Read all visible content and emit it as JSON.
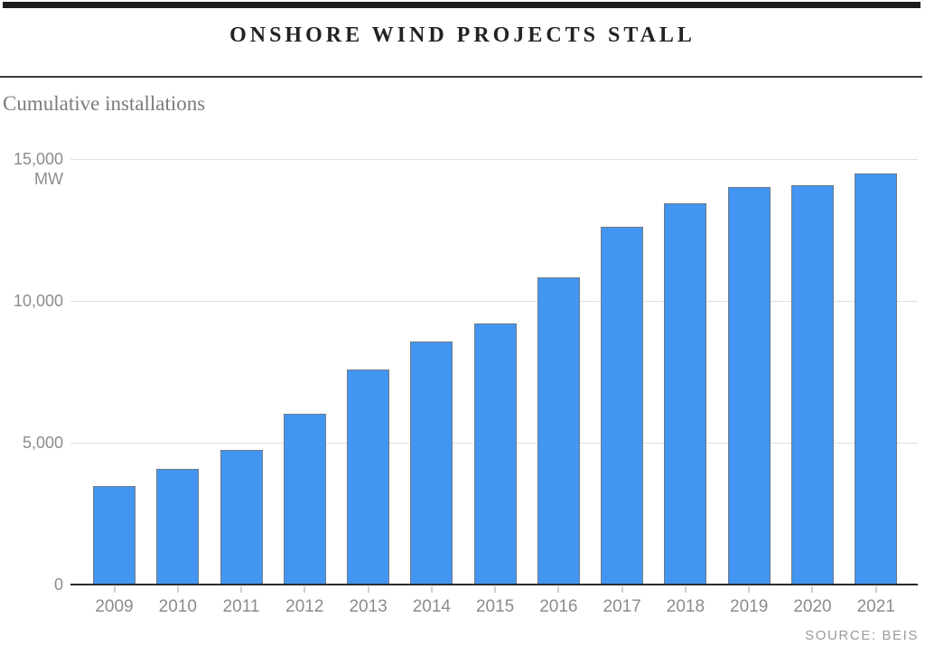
{
  "header": {
    "title": "ONSHORE WIND PROJECTS STALL",
    "subtitle": "Cumulative installations"
  },
  "source": "SOURCE: BEIS",
  "chart_data": {
    "type": "bar",
    "title": "ONSHORE WIND PROJECTS STALL",
    "subtitle": "Cumulative installations",
    "unit_label": "MW",
    "categories": [
      "2009",
      "2010",
      "2011",
      "2012",
      "2013",
      "2014",
      "2015",
      "2016",
      "2017",
      "2018",
      "2019",
      "2020",
      "2021"
    ],
    "values": [
      3480,
      4080,
      4760,
      6030,
      7590,
      8570,
      9210,
      10830,
      12600,
      13430,
      14000,
      14080,
      14490
    ],
    "ylim": [
      0,
      15000
    ],
    "yticks": [
      {
        "value": 15000,
        "label": "15,000"
      },
      {
        "value": 10000,
        "label": "10,000"
      },
      {
        "value": 5000,
        "label": "5,000"
      },
      {
        "value": 0,
        "label": "0"
      }
    ],
    "grid": "horizontal",
    "legend": "none",
    "bar_color": "#4296F2",
    "bar_border_color": "#6F7B85",
    "source": "SOURCE: BEIS"
  },
  "colors": {
    "accent_bar_fill": "#4296F2",
    "bar_border": "#6F7B85",
    "gridline": "#E0E0E0",
    "axis_line": "#2B2B2B",
    "axis_text": "#8C8C8C",
    "title_text": "#222226",
    "subtitle_text": "#7B7B7B",
    "source_text": "#9B9B9B",
    "top_rule": "#1D1D20"
  }
}
